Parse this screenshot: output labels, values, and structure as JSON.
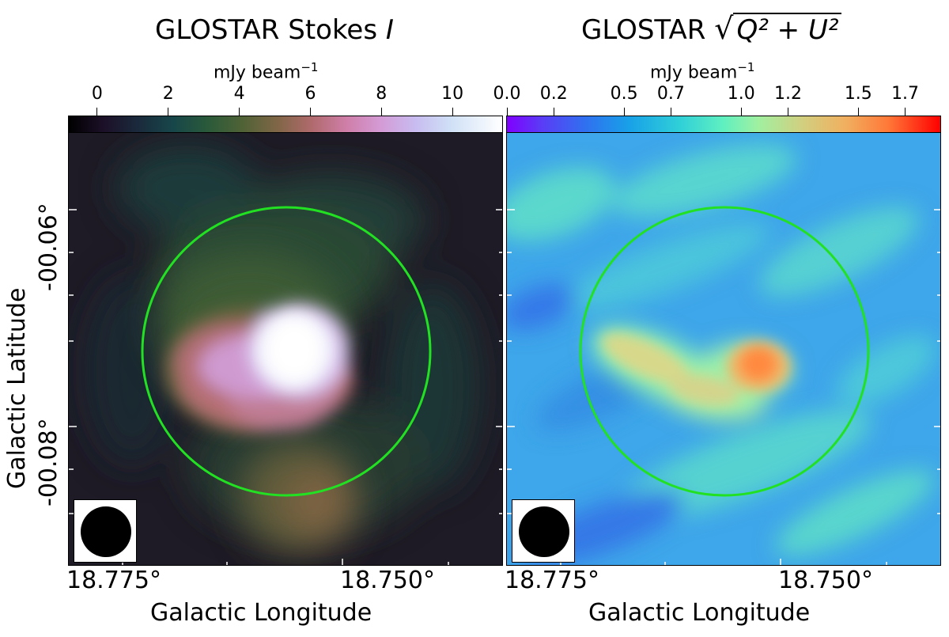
{
  "left_panel": {
    "title": "GLOSTAR Stokes",
    "title_symbol": "I",
    "colorbar_unit": "mJy beam",
    "colorbar_unit_exp": "−1",
    "colorbar_ticks": [
      "0",
      "2",
      "4",
      "6",
      "8",
      "10"
    ],
    "colorbar_range": [
      -0.8,
      11.4
    ],
    "colormap": "cubehelix",
    "x_ticks": [
      "18.775°",
      "18.750°"
    ],
    "xlabel": "Galactic Longitude",
    "ylabel": "Galactic Latitude",
    "y_ticks": [
      "-00.06°",
      "-00.08°"
    ]
  },
  "right_panel": {
    "title": "GLOSTAR",
    "title_expr": "Q² + U²",
    "colorbar_unit": "mJy beam",
    "colorbar_unit_exp": "−1",
    "colorbar_ticks": [
      "0.0",
      "0.2",
      "0.5",
      "0.7",
      "1.0",
      "1.2",
      "1.5",
      "1.7"
    ],
    "colorbar_range": [
      0.0,
      1.85
    ],
    "colormap": "rainbow",
    "x_ticks": [
      "18.775°",
      "18.750°"
    ],
    "xlabel": "Galactic Longitude"
  },
  "annotation_color": "#22e022"
}
